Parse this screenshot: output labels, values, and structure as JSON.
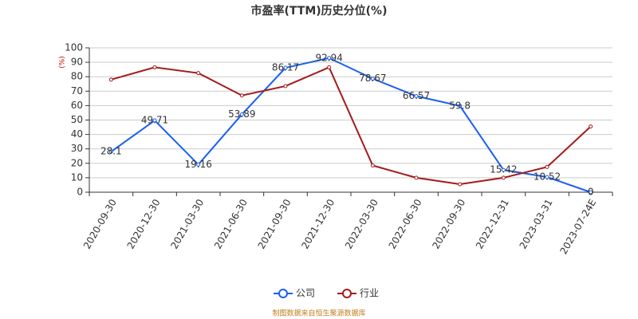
{
  "chart_data": {
    "type": "line",
    "title": "市盈率(TTM)历史分位(%)",
    "ylabel": "(%)",
    "categories": [
      "2020-09-30",
      "2020-12-30",
      "2021-03-30",
      "2021-06-30",
      "2021-09-30",
      "2021-12-30",
      "2022-03-30",
      "2022-06-30",
      "2022-09-30",
      "2022-12-31",
      "2023-03-31",
      "2023-07-24E"
    ],
    "series": [
      {
        "name": "公司",
        "color": "#1a5ff0",
        "values": [
          28.1,
          49.71,
          19.16,
          53.89,
          86.17,
          92.94,
          78.67,
          66.57,
          59.8,
          15.42,
          10.52,
          0
        ],
        "data_labels": true
      },
      {
        "name": "行业",
        "color": "#a31a1a",
        "values": [
          78,
          86.5,
          82.5,
          67,
          73.5,
          86.5,
          18.5,
          10,
          5.5,
          10,
          17.5,
          45.5
        ],
        "data_labels": false
      }
    ],
    "ylim": [
      0,
      100
    ],
    "yticks": [
      0,
      10,
      20,
      30,
      40,
      50,
      60,
      70,
      80,
      90,
      100
    ],
    "grid": true,
    "legend": "bottom",
    "source": "制图数据来自恒生聚源数据库"
  }
}
